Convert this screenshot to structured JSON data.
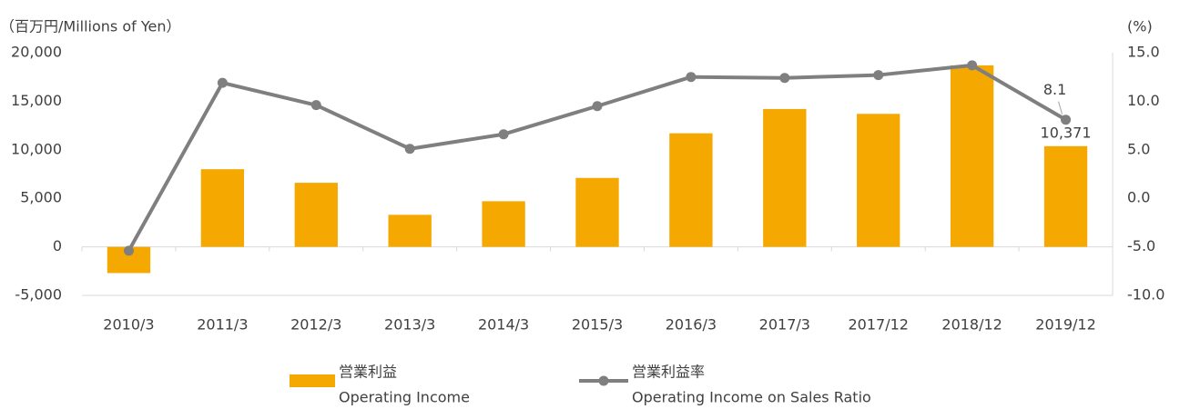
{
  "chart_data": {
    "type": "bar_line",
    "ylabel": "（百万円/Millions of Yen）",
    "y2label": "(%)",
    "categories": [
      "2010/3",
      "2011/3",
      "2012/3",
      "2013/3",
      "2014/3",
      "2015/3",
      "2016/3",
      "2017/3",
      "2017/12",
      "2018/12",
      "2019/12"
    ],
    "series": [
      {
        "name": [
          "営業利益",
          "Operating Income"
        ],
        "type": "bar",
        "color": "#f5a800",
        "values": [
          -2700,
          8000,
          6600,
          3300,
          4700,
          7100,
          11700,
          14200,
          13700,
          18700,
          10371
        ],
        "value_labels": [
          null,
          null,
          null,
          null,
          null,
          null,
          null,
          null,
          null,
          null,
          "10,371"
        ]
      },
      {
        "name": [
          "営業利益率",
          "Operating Income on Sales Ratio"
        ],
        "type": "line",
        "axis": "y2",
        "color": "#7f7f7f",
        "values": [
          -5.4,
          11.9,
          9.6,
          5.1,
          6.6,
          9.5,
          12.5,
          12.4,
          12.7,
          13.7,
          8.1
        ],
        "value_labels": [
          null,
          null,
          null,
          null,
          null,
          null,
          null,
          null,
          null,
          null,
          "8.1"
        ]
      }
    ],
    "ylim": [
      -5000,
      20000
    ],
    "yticks": [
      {
        "value": -5000,
        "label": "-5,000"
      },
      0,
      {
        "value": 5000,
        "label": "5,000"
      },
      {
        "value": 10000,
        "label": "10,000"
      },
      {
        "value": 15000,
        "label": "15,000"
      },
      {
        "value": 20000,
        "label": "20,000"
      }
    ],
    "y2lim": [
      -10,
      15
    ],
    "y2ticks": [
      {
        "value": -10,
        "label": "-10.0"
      },
      {
        "value": -5,
        "label": "-5.0"
      },
      {
        "value": 0,
        "label": "0.0"
      },
      {
        "value": 5,
        "label": "5.0"
      },
      {
        "value": 10,
        "label": "10.0"
      },
      {
        "value": 15,
        "label": "15.0"
      }
    ]
  }
}
